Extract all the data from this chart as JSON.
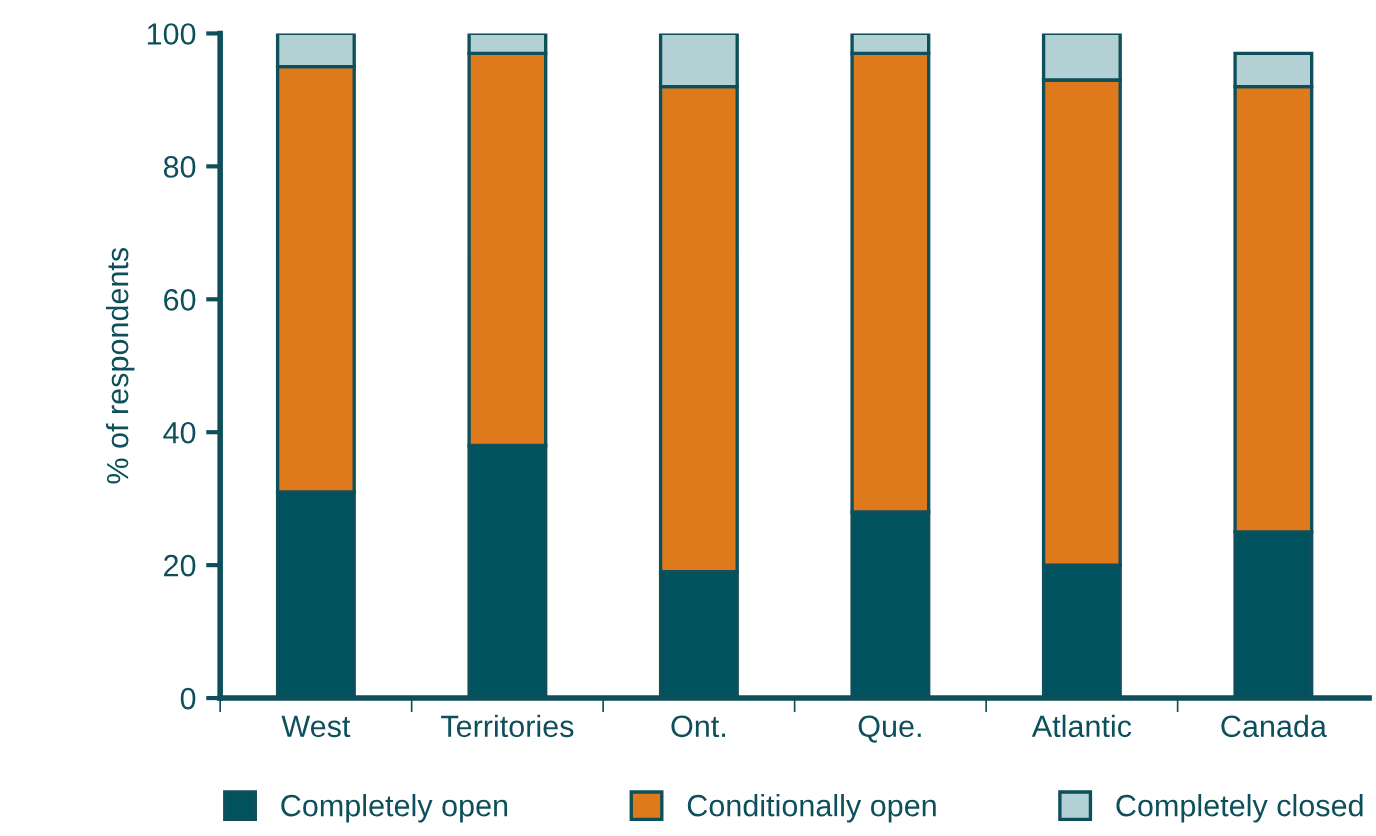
{
  "chart_data": {
    "type": "bar",
    "stacked": true,
    "ylabel": "% of respondents",
    "categories": [
      "West",
      "Territories",
      "Ont.",
      "Que.",
      "Atlantic",
      "Canada"
    ],
    "series": [
      {
        "name": "Completely open",
        "color": "#00525e",
        "values": [
          31,
          38,
          19,
          28,
          20,
          25
        ]
      },
      {
        "name": "Conditionally open",
        "color": "#de7a1c",
        "values": [
          64,
          59,
          73,
          69,
          73,
          67
        ]
      },
      {
        "name": "Completely closed",
        "color": "#b3d0d4",
        "values": [
          5,
          3,
          8,
          3,
          7,
          5
        ]
      }
    ],
    "ylim": [
      0,
      100
    ],
    "yticks": [
      0,
      20,
      40,
      60,
      80,
      100
    ],
    "grid": false,
    "legend": "bottom"
  }
}
